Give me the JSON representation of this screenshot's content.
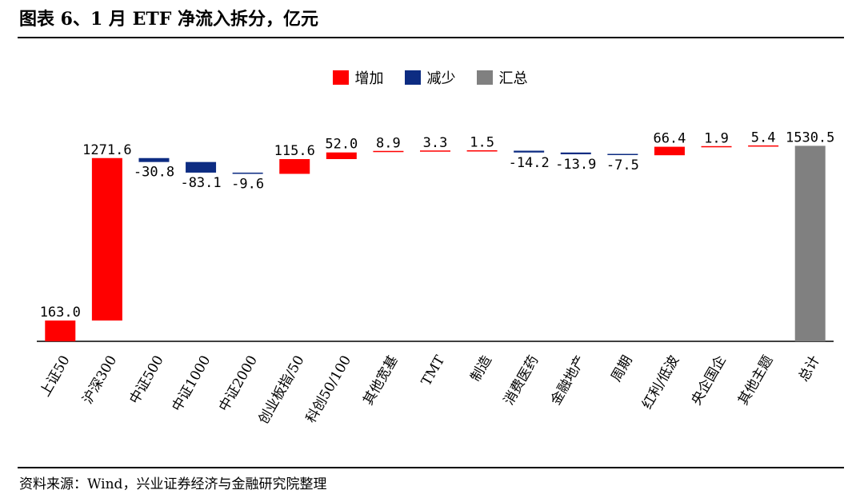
{
  "title": "图表 6、1 月 ETF 净流入拆分，亿元",
  "source": "资料来源：Wind，兴业证券经济与金融研究院整理",
  "colors": {
    "increase": "#ff0000",
    "decrease": "#0d2c82",
    "total": "#808080"
  },
  "legend": {
    "increase": "增加",
    "decrease": "减少",
    "total": "汇总"
  },
  "chart_data": {
    "type": "bar",
    "subtype": "waterfall",
    "categories": [
      "上证50",
      "沪深300",
      "中证500",
      "中证1000",
      "中证2000",
      "创业板指/50",
      "科创50/100",
      "其他宽基",
      "TMT",
      "制造",
      "消费医药",
      "金融地产",
      "周期",
      "红利/低波",
      "央企国企",
      "其他主题",
      "总计"
    ],
    "values": [
      163.0,
      1271.6,
      -30.8,
      -83.1,
      -9.6,
      115.6,
      52.0,
      8.9,
      3.3,
      1.5,
      -14.2,
      -13.9,
      -7.5,
      66.4,
      1.9,
      5.4,
      1530.5
    ],
    "labels": [
      "163.0",
      "1271.6",
      "-30.8",
      "-83.1",
      "-9.6",
      "115.6",
      "52.0",
      "8.9",
      "3.3",
      "1.5",
      "-14.2",
      "-13.9",
      "-7.5",
      "66.4",
      "1.9",
      "5.4",
      "1530.5"
    ],
    "total_index": 16,
    "ylim": [
      0,
      2000
    ],
    "legend_position": "top-center",
    "grid": false
  }
}
